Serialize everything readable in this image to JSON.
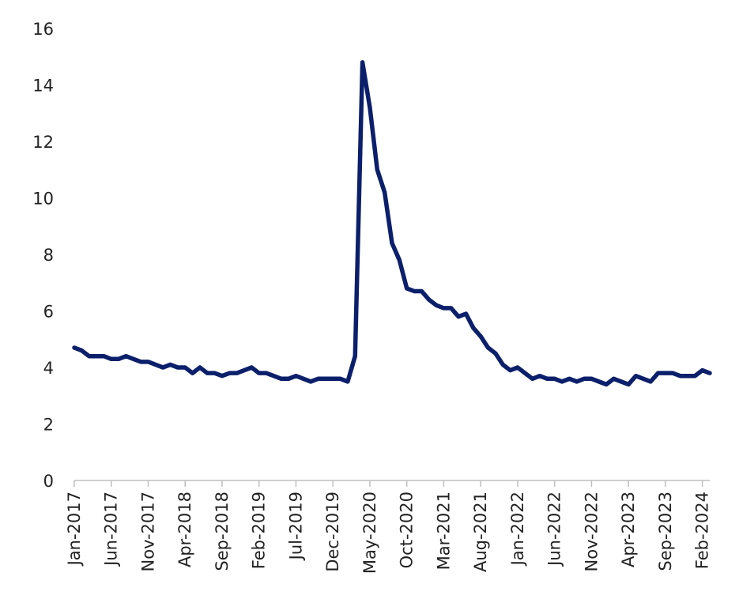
{
  "chart_data": {
    "type": "line",
    "title": "",
    "xlabel": "",
    "ylabel": "",
    "ylim": [
      0,
      16
    ],
    "yticks": [
      0,
      2,
      4,
      6,
      8,
      10,
      12,
      14,
      16
    ],
    "grid": false,
    "legend": "none",
    "x_start": "Jan-2017",
    "xtick_labels": [
      "Jan-2017",
      "Jun-2017",
      "Nov-2017",
      "Apr-2018",
      "Sep-2018",
      "Feb-2019",
      "Jul-2019",
      "Dec-2019",
      "May-2020",
      "Oct-2020",
      "Mar-2021",
      "Aug-2021",
      "Jan-2022",
      "Jun-2022",
      "Nov-2022",
      "Apr-2023",
      "Sep-2023",
      "Feb-2024"
    ],
    "series": [
      {
        "color": "#0b1f6b",
        "values": [
          4.7,
          4.6,
          4.4,
          4.4,
          4.4,
          4.3,
          4.3,
          4.4,
          4.3,
          4.2,
          4.2,
          4.1,
          4.0,
          4.1,
          4.0,
          4.0,
          3.8,
          4.0,
          3.8,
          3.8,
          3.7,
          3.8,
          3.8,
          3.9,
          4.0,
          3.8,
          3.8,
          3.7,
          3.6,
          3.6,
          3.7,
          3.6,
          3.5,
          3.6,
          3.6,
          3.6,
          3.6,
          3.5,
          4.4,
          14.8,
          13.2,
          11.0,
          10.2,
          8.4,
          7.8,
          6.8,
          6.7,
          6.7,
          6.4,
          6.2,
          6.1,
          6.1,
          5.8,
          5.9,
          5.4,
          5.1,
          4.7,
          4.5,
          4.1,
          3.9,
          4.0,
          3.8,
          3.6,
          3.7,
          3.6,
          3.6,
          3.5,
          3.6,
          3.5,
          3.6,
          3.6,
          3.5,
          3.4,
          3.6,
          3.5,
          3.4,
          3.7,
          3.6,
          3.5,
          3.8,
          3.8,
          3.8,
          3.7,
          3.7,
          3.7,
          3.9,
          3.8
        ]
      }
    ]
  }
}
